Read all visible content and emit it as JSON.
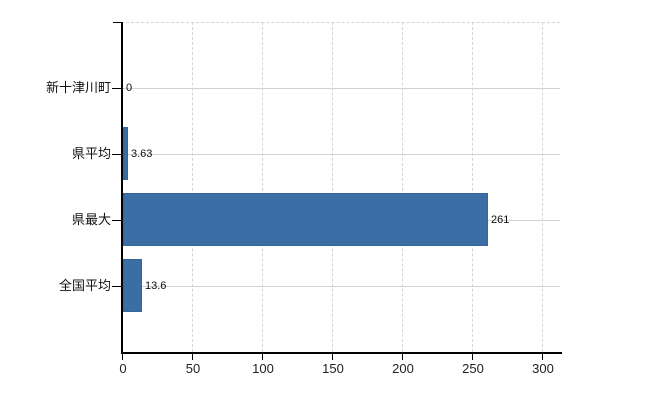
{
  "chart_data": {
    "type": "bar",
    "orientation": "horizontal",
    "title": "",
    "xlabel": "",
    "ylabel": "",
    "categories": [
      "新十津川町",
      "県平均",
      "県最大",
      "全国平均"
    ],
    "values": [
      0,
      3.63,
      261,
      13.6
    ],
    "value_labels": [
      "0",
      "3.63",
      "261",
      "13.6"
    ],
    "x_ticks": [
      0,
      50,
      100,
      150,
      200,
      250,
      300
    ],
    "x_tick_labels": [
      "0",
      "50",
      "100",
      "150",
      "200",
      "250",
      "300"
    ],
    "xlim": [
      0,
      313
    ],
    "grid": true,
    "legend": false,
    "bar_color": "#3b6ea5",
    "bar_border_color": "#35659c",
    "axis_color": "#000000",
    "h_gridline_color": "#ccd4cb",
    "v_gridline_color": "#d6d3d8",
    "background_color": "#ffffff"
  }
}
